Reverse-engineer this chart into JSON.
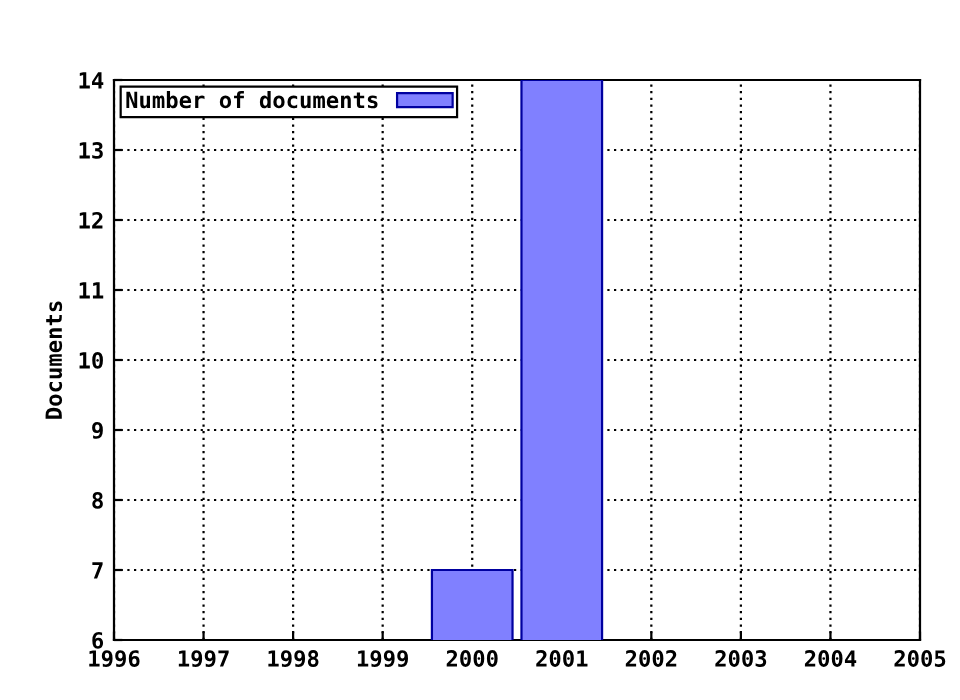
{
  "chart_data": {
    "type": "bar",
    "ylabel": "Documents",
    "x": [
      2000,
      2001
    ],
    "series": [
      {
        "name": "Number of documents",
        "color": "#8080ff",
        "values": [
          7,
          14
        ]
      }
    ],
    "xlim": [
      1996,
      2005
    ],
    "xticks": [
      1996,
      1997,
      1998,
      1999,
      2000,
      2001,
      2002,
      2003,
      2004,
      2005
    ],
    "ylim": [
      6,
      14
    ],
    "yticks": [
      6,
      7,
      8,
      9,
      10,
      11,
      12,
      13,
      14
    ],
    "grid": true,
    "legend": "top left"
  }
}
